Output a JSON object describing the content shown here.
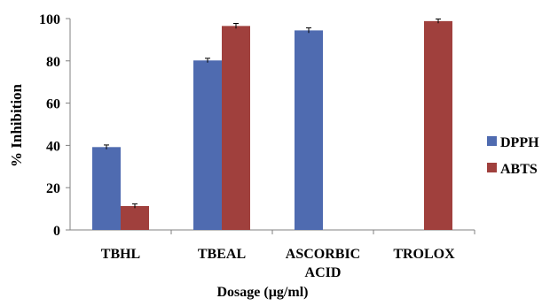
{
  "chart_data": {
    "type": "bar",
    "title": "",
    "xlabel": "Dosage (µg/ml)",
    "ylabel": "% Inhibition",
    "ylim": [
      0,
      100
    ],
    "yticks": [
      0,
      20,
      40,
      60,
      80,
      100
    ],
    "categories": [
      {
        "lines": [
          "TBHL"
        ]
      },
      {
        "lines": [
          "TBEAL"
        ]
      },
      {
        "lines": [
          "ASCORBIC",
          "ACID"
        ]
      },
      {
        "lines": [
          "TROLOX"
        ]
      }
    ],
    "series": [
      {
        "name": "DPPH",
        "color": "#4F6BB0",
        "values": [
          39.2,
          80.2,
          94.4,
          null
        ],
        "errors": [
          1.0,
          1.0,
          1.2,
          null
        ]
      },
      {
        "name": "ABTS",
        "color": "#A0403D",
        "values": [
          11.3,
          96.5,
          null,
          98.8
        ],
        "errors": [
          1.0,
          1.2,
          null,
          1.0
        ]
      }
    ],
    "grid": false,
    "legend_position": "right",
    "error_bars": true
  }
}
